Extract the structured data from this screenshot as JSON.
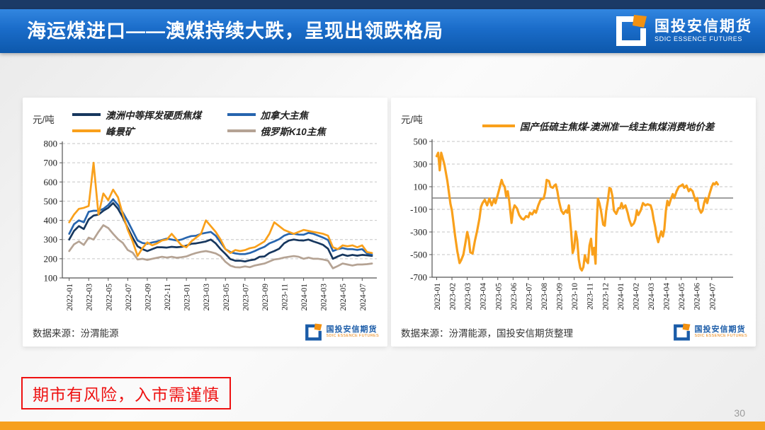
{
  "header": {
    "title": "海运煤进口——澳煤持续大跌，呈现出领跌格局"
  },
  "logo": {
    "cn": "国投安信期货",
    "en": "SDIC ESSENCE FUTURES"
  },
  "footer": {
    "disclaimer": "期市有风险，入市需谨慎",
    "page_number": "30"
  },
  "colors": {
    "header_navy_strip": "#1b3a66",
    "header_blue_top": "#3286e0",
    "header_blue_bottom": "#0d58ab",
    "bottom_bar_orange": "#f6a01e",
    "disclaimer_red": "#ee1111",
    "logo_orange": "#f29111",
    "logo_blue": "#1b5ca8"
  },
  "chart_data": [
    {
      "type": "line",
      "unit_label": "元/吨",
      "source": "数据来源：汾渭能源",
      "x_labels": [
        "2022-01",
        "2022-03",
        "2022-05",
        "2022-07",
        "2022-09",
        "2022-11",
        "2023-01",
        "2023-03",
        "2023-05",
        "2023-07",
        "2023-09",
        "2023-11",
        "2024-01",
        "2024-03",
        "2024-05",
        "2024-07"
      ],
      "x_label_month_step": 2,
      "x_min": -0.7,
      "x_max": 31.5,
      "y_min": 100,
      "y_max": 800,
      "y_tick_step": 100,
      "zero_line": false,
      "grid": "dashed-horizontal",
      "legend_position": "top",
      "draw_order": [
        3,
        0,
        1,
        2
      ],
      "series": [
        {
          "name": "澳洲中等挥发硬质焦煤",
          "color": "#17375e",
          "x_step": 0.5,
          "values": [
            300,
            345,
            370,
            355,
            405,
            425,
            430,
            450,
            465,
            490,
            460,
            415,
            360,
            310,
            265,
            250,
            240,
            250,
            260,
            260,
            258,
            262,
            260,
            262,
            268,
            278,
            280,
            285,
            290,
            300,
            280,
            250,
            225,
            198,
            190,
            190,
            186,
            192,
            196,
            210,
            212,
            230,
            240,
            252,
            280,
            295,
            300,
            296,
            295,
            300,
            290,
            282,
            272,
            252,
            200,
            212,
            222,
            215,
            220,
            216,
            220,
            218,
            215
          ]
        },
        {
          "name": "加拿大主焦",
          "color": "#2765ae",
          "x_step": 0.5,
          "values": [
            330,
            380,
            400,
            390,
            445,
            450,
            450,
            460,
            480,
            510,
            480,
            440,
            395,
            345,
            295,
            282,
            278,
            285,
            290,
            298,
            305,
            300,
            295,
            300,
            310,
            318,
            320,
            330,
            335,
            340,
            320,
            285,
            250,
            235,
            228,
            224,
            224,
            230,
            240,
            252,
            262,
            280,
            290,
            302,
            320,
            330,
            330,
            326,
            325,
            335,
            330,
            320,
            310,
            298,
            240,
            250,
            256,
            250,
            250,
            246,
            250,
            228,
            222
          ]
        },
        {
          "name": "峰景矿",
          "color": "#f9a01b",
          "x_step": 0.5,
          "values": [
            390,
            430,
            460,
            465,
            475,
            700,
            430,
            540,
            505,
            560,
            520,
            430,
            350,
            290,
            215,
            255,
            285,
            270,
            280,
            295,
            300,
            330,
            300,
            270,
            260,
            290,
            310,
            330,
            400,
            370,
            340,
            300,
            250,
            230,
            245,
            240,
            245,
            255,
            260,
            275,
            290,
            330,
            390,
            370,
            350,
            340,
            330,
            340,
            350,
            345,
            340,
            335,
            330,
            320,
            260,
            250,
            270,
            265,
            270,
            260,
            270,
            235,
            230
          ]
        },
        {
          "name": "俄罗斯K10主焦",
          "color": "#b5a394",
          "x_step": 0.5,
          "values": [
            240,
            275,
            290,
            272,
            310,
            300,
            340,
            375,
            360,
            330,
            302,
            282,
            245,
            232,
            196,
            200,
            194,
            200,
            205,
            210,
            206,
            210,
            205,
            208,
            212,
            222,
            230,
            236,
            240,
            235,
            228,
            214,
            184,
            164,
            156,
            155,
            160,
            156,
            165,
            170,
            175,
            186,
            196,
            200,
            206,
            210,
            214,
            210,
            200,
            206,
            200,
            200,
            196,
            190,
            150,
            162,
            175,
            170,
            165,
            170,
            170,
            172,
            175
          ]
        }
      ]
    },
    {
      "type": "line",
      "unit_label": "元/吨",
      "source": "数据来源：汾渭能源，国投安信期货整理",
      "x_labels": [
        "2023-01",
        "2023-02",
        "2023-03",
        "2023-04",
        "2023-05",
        "2023-06",
        "2023-07",
        "2023-08",
        "2023-09",
        "2023-10",
        "2023-11",
        "2023-12",
        "2024-01",
        "2024-02",
        "2024-03",
        "2024-04",
        "2024-05",
        "2024-06",
        "2024-07"
      ],
      "x_label_month_step": 1,
      "x_min": -0.3,
      "x_max": 19.4,
      "y_min": -700,
      "y_max": 500,
      "y_tick_step": 200,
      "zero_line": true,
      "grid": "dashed-horizontal",
      "legend_position": "top-center",
      "series": [
        {
          "name": "国产低硫主焦煤-澳洲准一线主焦煤消费地价差",
          "color": "#f9a01b",
          "points": [
            [
              0,
              370
            ],
            [
              0.1,
              400
            ],
            [
              0.2,
              245
            ],
            [
              0.3,
              400
            ],
            [
              0.5,
              300
            ],
            [
              0.7,
              150
            ],
            [
              0.9,
              -50
            ],
            [
              1.0,
              -110
            ],
            [
              1.2,
              -330
            ],
            [
              1.35,
              -470
            ],
            [
              1.5,
              -575
            ],
            [
              1.6,
              -550
            ],
            [
              1.75,
              -500
            ],
            [
              1.9,
              -380
            ],
            [
              2.0,
              -300
            ],
            [
              2.1,
              -360
            ],
            [
              2.2,
              -480
            ],
            [
              2.35,
              -490
            ],
            [
              2.5,
              -380
            ],
            [
              2.65,
              -290
            ],
            [
              2.8,
              -180
            ],
            [
              2.9,
              -80
            ],
            [
              3.0,
              -45
            ],
            [
              3.15,
              -15
            ],
            [
              3.3,
              -65
            ],
            [
              3.45,
              -5
            ],
            [
              3.6,
              -65
            ],
            [
              3.75,
              -10
            ],
            [
              3.85,
              -45
            ],
            [
              4.0,
              30
            ],
            [
              4.1,
              80
            ],
            [
              4.25,
              160
            ],
            [
              4.35,
              120
            ],
            [
              4.45,
              100
            ],
            [
              4.55,
              15
            ],
            [
              4.65,
              60
            ],
            [
              4.75,
              -25
            ],
            [
              4.9,
              -220
            ],
            [
              5.0,
              -110
            ],
            [
              5.1,
              -65
            ],
            [
              5.25,
              -90
            ],
            [
              5.4,
              -150
            ],
            [
              5.55,
              -180
            ],
            [
              5.7,
              -190
            ],
            [
              5.85,
              -160
            ],
            [
              6.0,
              -170
            ],
            [
              6.1,
              -130
            ],
            [
              6.25,
              -145
            ],
            [
              6.4,
              -110
            ],
            [
              6.5,
              -130
            ],
            [
              6.65,
              -65
            ],
            [
              6.8,
              -15
            ],
            [
              7.0,
              -5
            ],
            [
              7.1,
              50
            ],
            [
              7.2,
              160
            ],
            [
              7.35,
              150
            ],
            [
              7.45,
              100
            ],
            [
              7.6,
              90
            ],
            [
              7.7,
              110
            ],
            [
              7.8,
              120
            ],
            [
              7.9,
              60
            ],
            [
              8.0,
              -25
            ],
            [
              8.15,
              -110
            ],
            [
              8.3,
              -140
            ],
            [
              8.45,
              -110
            ],
            [
              8.55,
              -130
            ],
            [
              8.65,
              -65
            ],
            [
              8.8,
              -295
            ],
            [
              8.9,
              -485
            ],
            [
              9.0,
              -440
            ],
            [
              9.1,
              -295
            ],
            [
              9.2,
              -370
            ],
            [
              9.3,
              -545
            ],
            [
              9.4,
              -620
            ],
            [
              9.5,
              -640
            ],
            [
              9.6,
              -610
            ],
            [
              9.7,
              -505
            ],
            [
              9.8,
              -555
            ],
            [
              9.9,
              -575
            ],
            [
              10.0,
              -420
            ],
            [
              10.1,
              -360
            ],
            [
              10.2,
              -500
            ],
            [
              10.3,
              -440
            ],
            [
              10.4,
              -580
            ],
            [
              10.45,
              -300
            ],
            [
              10.55,
              -5
            ],
            [
              10.65,
              -45
            ],
            [
              10.75,
              -110
            ],
            [
              10.9,
              -235
            ],
            [
              11.0,
              -245
            ],
            [
              11.1,
              -110
            ],
            [
              11.2,
              -25
            ],
            [
              11.3,
              90
            ],
            [
              11.4,
              80
            ],
            [
              11.5,
              15
            ],
            [
              11.6,
              -110
            ],
            [
              11.75,
              -140
            ],
            [
              11.9,
              -90
            ],
            [
              12.0,
              -90
            ],
            [
              12.1,
              -45
            ],
            [
              12.2,
              -90
            ],
            [
              12.35,
              -65
            ],
            [
              12.5,
              -130
            ],
            [
              12.6,
              -190
            ],
            [
              12.75,
              -245
            ],
            [
              12.9,
              -225
            ],
            [
              13.0,
              -190
            ],
            [
              13.1,
              -110
            ],
            [
              13.2,
              -150
            ],
            [
              13.35,
              -110
            ],
            [
              13.5,
              -45
            ],
            [
              13.65,
              -65
            ],
            [
              13.8,
              -55
            ],
            [
              14.0,
              -65
            ],
            [
              14.1,
              -110
            ],
            [
              14.2,
              -190
            ],
            [
              14.3,
              -255
            ],
            [
              14.4,
              -340
            ],
            [
              14.5,
              -390
            ],
            [
              14.6,
              -340
            ],
            [
              14.7,
              -295
            ],
            [
              14.8,
              -340
            ],
            [
              14.9,
              -275
            ],
            [
              15.0,
              -110
            ],
            [
              15.1,
              -25
            ],
            [
              15.2,
              -65
            ],
            [
              15.35,
              0
            ],
            [
              15.45,
              35
            ],
            [
              15.55,
              0
            ],
            [
              15.7,
              60
            ],
            [
              15.85,
              100
            ],
            [
              16.0,
              110
            ],
            [
              16.1,
              120
            ],
            [
              16.2,
              90
            ],
            [
              16.35,
              110
            ],
            [
              16.5,
              60
            ],
            [
              16.6,
              80
            ],
            [
              16.75,
              60
            ],
            [
              16.85,
              15
            ],
            [
              16.95,
              -25
            ],
            [
              17.05,
              0
            ],
            [
              17.15,
              -90
            ],
            [
              17.3,
              -130
            ],
            [
              17.4,
              -110
            ],
            [
              17.5,
              -45
            ],
            [
              17.6,
              0
            ],
            [
              17.7,
              -45
            ],
            [
              17.85,
              35
            ],
            [
              18.0,
              100
            ],
            [
              18.1,
              130
            ],
            [
              18.2,
              120
            ],
            [
              18.3,
              140
            ],
            [
              18.4,
              120
            ]
          ]
        }
      ]
    }
  ]
}
